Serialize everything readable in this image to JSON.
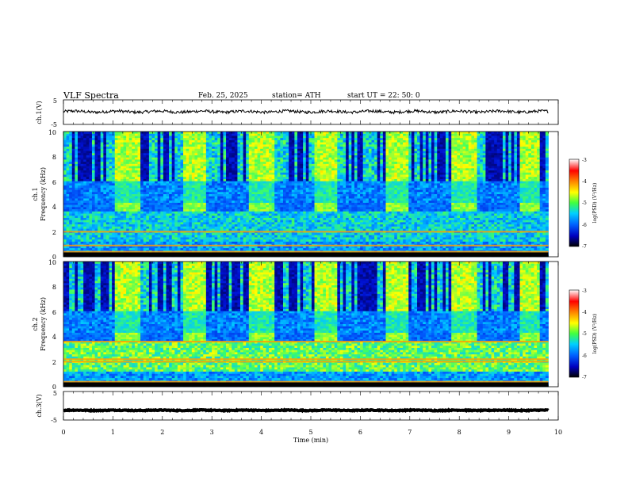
{
  "header": {
    "title": "VLF Spectra",
    "date": "Feb. 25, 2025",
    "station": "station= ATH",
    "start_time": "start UT =   22: 50: 0"
  },
  "colors": {
    "spectrogram_stops": [
      "#000040",
      "#0010d0",
      "#0060ff",
      "#00c8ff",
      "#40ff60",
      "#ffff00",
      "#ff8000",
      "#ff0000",
      "#ffffff"
    ],
    "trace": "#000000"
  },
  "chart_data": [
    {
      "type": "line",
      "name": "ch1-waveform",
      "ylabel": "ch.1(V)",
      "yticks": [
        "5",
        "-5"
      ],
      "ylim": [
        -5,
        5
      ],
      "xlim": [
        0,
        10
      ],
      "x_end": 9.8,
      "level": 0.2,
      "noise_amplitude": 0.6
    },
    {
      "type": "heatmap",
      "name": "ch1-spectrogram",
      "ylabel_top": "ch.1",
      "ylabel": "Frequency (kHz)",
      "yticks": [
        "10",
        "8",
        "6",
        "4",
        "2",
        "0"
      ],
      "ylim": [
        0,
        10
      ],
      "xlim": [
        0,
        10
      ],
      "x_end": 9.8,
      "colorbar": {
        "label": "log(PSD) (V²/Hz)",
        "ticks": [
          "-3",
          "-4",
          "-5",
          "-6",
          "-7"
        ],
        "range": [
          -7,
          -3
        ]
      },
      "beacon_band_khz": [
        3.6,
        4.3
      ],
      "beacon_on_min": [
        [
          1.05,
          1.55
        ],
        [
          2.4,
          2.9
        ],
        [
          3.75,
          4.25
        ],
        [
          5.1,
          5.55
        ],
        [
          6.5,
          6.95
        ],
        [
          7.85,
          8.35
        ],
        [
          9.2,
          9.65
        ]
      ],
      "strong_lines_khz": [
        0.4,
        0.9,
        2.0
      ]
    },
    {
      "type": "heatmap",
      "name": "ch2-spectrogram",
      "ylabel_top": "ch.2",
      "ylabel": "Frequency (kHz)",
      "yticks": [
        "10",
        "8",
        "6",
        "4",
        "2",
        "0"
      ],
      "ylim": [
        0,
        10
      ],
      "xlim": [
        0,
        10
      ],
      "x_end": 9.8,
      "colorbar": {
        "label": "log(PSD) (V²/Hz)",
        "ticks": [
          "-3",
          "-4",
          "-5",
          "-6",
          "-7"
        ],
        "range": [
          -7,
          -3
        ]
      },
      "beacon_band_khz": [
        3.6,
        4.3
      ],
      "beacon_on_min": [
        [
          1.05,
          1.55
        ],
        [
          2.4,
          2.9
        ],
        [
          3.75,
          4.25
        ],
        [
          5.1,
          5.55
        ],
        [
          6.5,
          6.95
        ],
        [
          7.85,
          8.35
        ],
        [
          9.2,
          9.65
        ]
      ],
      "strong_lines_khz": [
        0.4,
        2.0,
        2.2,
        3.6
      ]
    },
    {
      "type": "line",
      "name": "ch3-waveform",
      "ylabel": "ch.3(V)",
      "yticks": [
        "5",
        "-5"
      ],
      "ylim": [
        -5,
        5
      ],
      "xlim": [
        0,
        10
      ],
      "x_end": 9.8,
      "level": -1.6,
      "noise_amplitude": 0.15
    }
  ],
  "x_axis": {
    "label": "Time (min)",
    "ticks": [
      "0",
      "1",
      "2",
      "3",
      "4",
      "5",
      "6",
      "7",
      "8",
      "9",
      "10"
    ],
    "range": [
      0,
      10
    ]
  }
}
